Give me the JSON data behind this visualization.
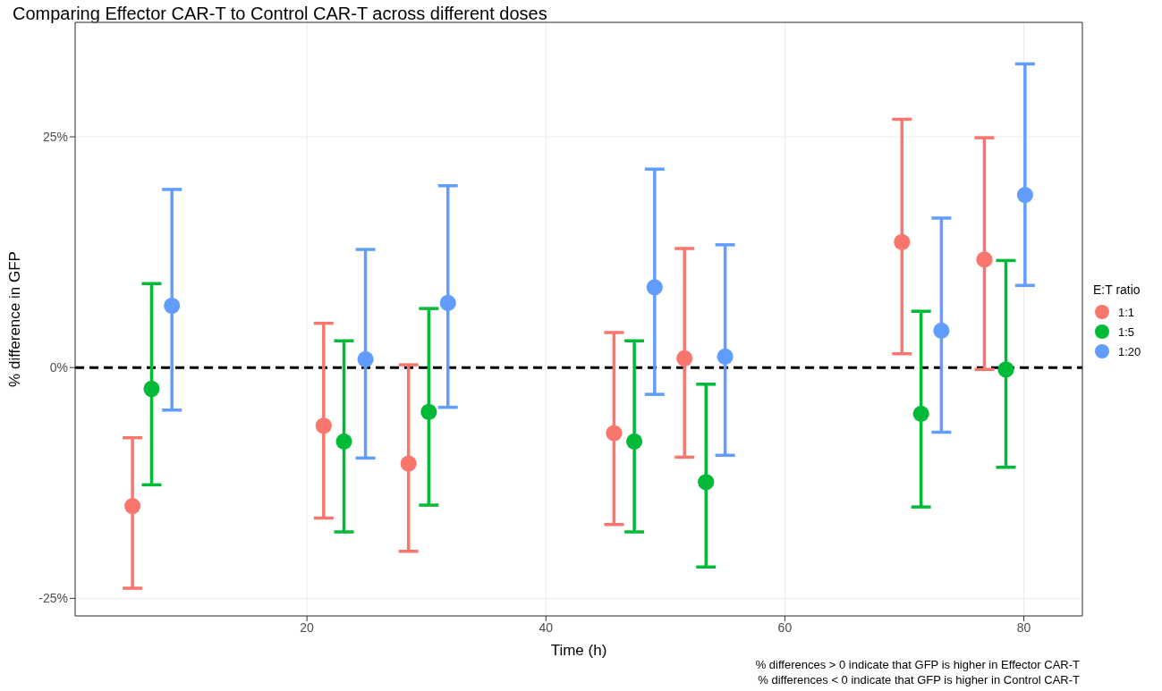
{
  "chart_data": {
    "type": "scatter",
    "title": "Comparing Effector CAR-T to Control CAR-T across different doses",
    "xlabel": "Time (h)",
    "ylabel": "% difference in GFP",
    "legend_title": "E:T ratio",
    "legend": "right",
    "grid": true,
    "marker": "circle",
    "xlim": [
      0.6,
      84.9
    ],
    "xticks": [
      20,
      40,
      60,
      80
    ],
    "ylim": [
      -26.9,
      37.4
    ],
    "yticks": [
      {
        "value": -25,
        "label": "-25%"
      },
      {
        "value": 0,
        "label": "0%"
      },
      {
        "value": 25,
        "label": "25%"
      }
    ],
    "ref_lines": [
      {
        "axis": "y",
        "value": 0,
        "color": "#000000",
        "line_style": "dashed"
      }
    ],
    "series": [
      {
        "name": "1:1",
        "color": "#f8766d",
        "x": [
          5.4,
          21.4,
          28.5,
          45.7,
          51.6,
          69.8,
          76.7
        ],
        "values": [
          -15.0,
          -6.3,
          -10.4,
          -7.1,
          1.0,
          13.6,
          11.7
        ],
        "errors": [
          [
            -23.9,
            -7.6
          ],
          [
            -16.3,
            4.8
          ],
          [
            -19.9,
            0.3
          ],
          [
            -17.0,
            3.8
          ],
          [
            -9.7,
            12.9
          ],
          [
            1.5,
            26.9
          ],
          [
            -0.2,
            24.9
          ]
        ]
      },
      {
        "name": "1:5",
        "color": "#00ba38",
        "x": [
          7.0,
          23.1,
          30.2,
          47.4,
          53.4,
          71.4,
          78.5
        ],
        "values": [
          -2.3,
          -8.0,
          -4.8,
          -8.0,
          -12.4,
          -5.0,
          -0.2
        ],
        "errors": [
          [
            -12.7,
            9.1
          ],
          [
            -17.8,
            2.9
          ],
          [
            -14.9,
            6.4
          ],
          [
            -17.8,
            2.9
          ],
          [
            -21.6,
            -1.8
          ],
          [
            -15.1,
            6.1
          ],
          [
            -10.8,
            11.6
          ]
        ]
      },
      {
        "name": "1:20",
        "color": "#619cff",
        "x": [
          8.7,
          24.9,
          31.8,
          49.1,
          55.0,
          73.1,
          80.1
        ],
        "values": [
          6.7,
          0.9,
          7.0,
          8.7,
          1.2,
          4.0,
          18.7
        ],
        "errors": [
          [
            -4.6,
            19.3
          ],
          [
            -9.8,
            12.8
          ],
          [
            -4.3,
            19.7
          ],
          [
            -2.9,
            21.5
          ],
          [
            -9.5,
            13.3
          ],
          [
            -7.0,
            16.2
          ],
          [
            8.9,
            32.9
          ]
        ]
      }
    ],
    "annotations": [
      "% differences > 0 indicate that GFP is higher in Effector CAR-T",
      "% differences < 0 indicate that GFP is higher in Control CAR-T"
    ]
  }
}
